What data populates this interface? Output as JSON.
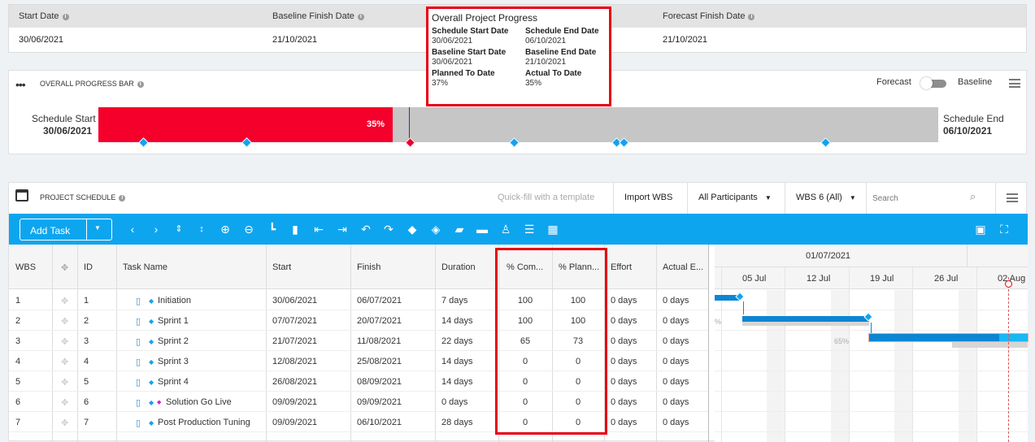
{
  "summary": {
    "start_label": "Start Date",
    "start_value": "30/06/2021",
    "baseline_finish_label": "Baseline Finish Date",
    "baseline_finish_value": "21/10/2021",
    "forecast_finish_label": "Forecast Finish Date",
    "forecast_finish_value": "21/10/2021"
  },
  "tooltip": {
    "title": "Overall Project Progress",
    "fields": [
      {
        "label": "Schedule Start Date",
        "value": "30/06/2021"
      },
      {
        "label": "Schedule End Date",
        "value": "06/10/2021"
      },
      {
        "label": "Baseline Start Date",
        "value": "30/06/2021"
      },
      {
        "label": "Baseline End Date",
        "value": "21/10/2021"
      },
      {
        "label": "Planned To Date",
        "value": "37%"
      },
      {
        "label": "Actual To Date",
        "value": "35%"
      }
    ]
  },
  "progress": {
    "title": "OVERALL PROGRESS BAR",
    "forecast_label": "Forecast",
    "baseline_label": "Baseline",
    "schedule_start_label": "Schedule Start",
    "schedule_start_value": "30/06/2021",
    "schedule_end_label": "Schedule End",
    "schedule_end_value": "06/10/2021",
    "percent_text": "35%",
    "actual_fraction": 0.35,
    "planned_fraction": 0.37
  },
  "schedule": {
    "title": "PROJECT SCHEDULE",
    "quickfill": "Quick-fill with a template",
    "import_label": "Import WBS",
    "participants_label": "All Participants",
    "wbs_label": "WBS 6 (All)",
    "search_placeholder": "Search",
    "add_task_label": "Add Task",
    "columns": [
      "WBS",
      "ID",
      "Task Name",
      "Start",
      "Finish",
      "Duration",
      "% Com...",
      "% Plann...",
      "Effort",
      "Actual E..."
    ],
    "rows": [
      {
        "wbs": "1",
        "id": "1",
        "name": "Initiation",
        "start": "30/06/2021",
        "finish": "06/07/2021",
        "duration": "7 days",
        "complete": "100",
        "planned": "100",
        "effort": "0 days",
        "actual": "0 days"
      },
      {
        "wbs": "2",
        "id": "2",
        "name": "Sprint 1",
        "start": "07/07/2021",
        "finish": "20/07/2021",
        "duration": "14 days",
        "complete": "100",
        "planned": "100",
        "effort": "0 days",
        "actual": "0 days"
      },
      {
        "wbs": "3",
        "id": "3",
        "name": "Sprint 2",
        "start": "21/07/2021",
        "finish": "11/08/2021",
        "duration": "22 days",
        "complete": "65",
        "planned": "73",
        "effort": "0 days",
        "actual": "0 days"
      },
      {
        "wbs": "4",
        "id": "4",
        "name": "Sprint 3",
        "start": "12/08/2021",
        "finish": "25/08/2021",
        "duration": "14 days",
        "complete": "0",
        "planned": "0",
        "effort": "0 days",
        "actual": "0 days"
      },
      {
        "wbs": "5",
        "id": "5",
        "name": "Sprint 4",
        "start": "26/08/2021",
        "finish": "08/09/2021",
        "duration": "14 days",
        "complete": "0",
        "planned": "0",
        "effort": "0 days",
        "actual": "0 days"
      },
      {
        "wbs": "6",
        "id": "6",
        "name": "Solution Go Live",
        "start": "09/09/2021",
        "finish": "09/09/2021",
        "duration": "0 days",
        "complete": "0",
        "planned": "0",
        "effort": "0 days",
        "actual": "0 days"
      },
      {
        "wbs": "7",
        "id": "7",
        "name": "Post Production Tuning",
        "start": "09/09/2021",
        "finish": "06/10/2021",
        "duration": "28 days",
        "complete": "0",
        "planned": "0",
        "effort": "0 days",
        "actual": "0 days"
      }
    ],
    "gantt": {
      "month": "01/07/2021",
      "weeks": [
        "05 Jul",
        "12 Jul",
        "19 Jul",
        "26 Jul",
        "02 Aug"
      ],
      "pct_left": "%",
      "pct_sprint2": "65%"
    }
  },
  "colors": {
    "accent": "#0ea5ef",
    "progress_red": "#f4002b",
    "highlight": "#e8000f"
  }
}
